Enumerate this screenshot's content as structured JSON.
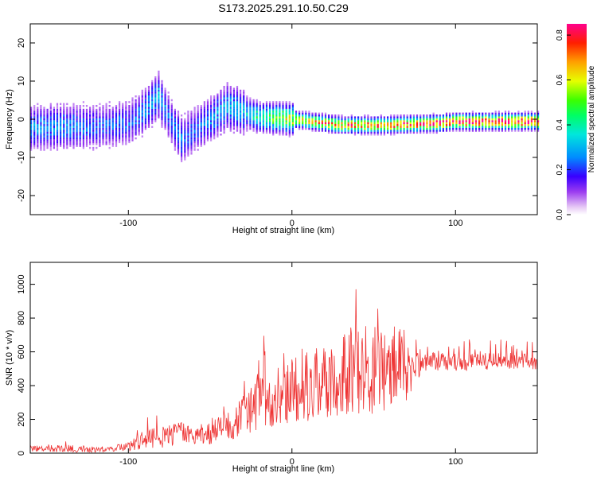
{
  "title": "S173.2025.291.10.50.C29",
  "chart_data": [
    {
      "type": "heatmap",
      "name": "spectrogram",
      "xlabel": "Height of straight line (km)",
      "ylabel": "Frequency (Hz)",
      "xlim": [
        -160,
        150
      ],
      "ylim": [
        -25,
        25
      ],
      "xticks": [
        -100,
        0,
        100
      ],
      "yticks": [
        -20,
        -10,
        0,
        10,
        20
      ],
      "colorbar": {
        "label": "Normalized spectral amplitude",
        "range": [
          0.0,
          0.85
        ],
        "ticks": [
          0.0,
          0.2,
          0.4,
          0.6,
          0.8
        ]
      },
      "ridge": [
        {
          "x": -160,
          "f": -2.5,
          "amp": 0.25
        },
        {
          "x": -140,
          "f": -2.0,
          "amp": 0.25
        },
        {
          "x": -120,
          "f": -2.0,
          "amp": 0.2
        },
        {
          "x": -100,
          "f": -1.0,
          "amp": 0.2
        },
        {
          "x": -90,
          "f": 2.5,
          "amp": 0.25
        },
        {
          "x": -82,
          "f": 6.5,
          "amp": 0.3
        },
        {
          "x": -75,
          "f": 0.0,
          "amp": 0.2
        },
        {
          "x": -68,
          "f": -5.5,
          "amp": 0.25
        },
        {
          "x": -60,
          "f": -3.0,
          "amp": 0.2
        },
        {
          "x": -50,
          "f": 0.0,
          "amp": 0.25
        },
        {
          "x": -40,
          "f": 3.5,
          "amp": 0.3
        },
        {
          "x": -30,
          "f": 2.0,
          "amp": 0.3
        },
        {
          "x": -20,
          "f": 0.5,
          "amp": 0.4
        },
        {
          "x": -10,
          "f": 0.3,
          "amp": 0.55
        },
        {
          "x": 0,
          "f": 0.0,
          "amp": 0.6
        },
        {
          "x": 10,
          "f": -0.5,
          "amp": 0.65
        },
        {
          "x": 20,
          "f": -1.0,
          "amp": 0.7
        },
        {
          "x": 30,
          "f": -1.5,
          "amp": 0.7
        },
        {
          "x": 40,
          "f": -1.5,
          "amp": 0.72
        },
        {
          "x": 50,
          "f": -1.5,
          "amp": 0.72
        },
        {
          "x": 60,
          "f": -1.5,
          "amp": 0.75
        },
        {
          "x": 70,
          "f": -1.3,
          "amp": 0.75
        },
        {
          "x": 80,
          "f": -1.2,
          "amp": 0.78
        },
        {
          "x": 90,
          "f": -1.0,
          "amp": 0.8
        },
        {
          "x": 100,
          "f": -0.6,
          "amp": 0.82
        },
        {
          "x": 110,
          "f": -0.6,
          "amp": 0.83
        },
        {
          "x": 120,
          "f": -0.6,
          "amp": 0.84
        },
        {
          "x": 130,
          "f": -0.6,
          "amp": 0.85
        },
        {
          "x": 150,
          "f": -0.6,
          "amp": 0.85
        }
      ]
    },
    {
      "type": "line",
      "name": "snr",
      "xlabel": "Height of straight line (km)",
      "ylabel": "SNR (10 * v/v)",
      "xlim": [
        -160,
        150
      ],
      "ylim": [
        0,
        1130
      ],
      "xticks": [
        -100,
        0,
        100
      ],
      "yticks": [
        0,
        200,
        400,
        600,
        800,
        1000
      ],
      "color": "#ee3333",
      "envelope": [
        {
          "x": -160,
          "base": 25,
          "amp": 35
        },
        {
          "x": -130,
          "base": 25,
          "amp": 45
        },
        {
          "x": -110,
          "base": 20,
          "amp": 30
        },
        {
          "x": -100,
          "base": 40,
          "amp": 60
        },
        {
          "x": -90,
          "base": 70,
          "amp": 110
        },
        {
          "x": -80,
          "base": 90,
          "amp": 130
        },
        {
          "x": -70,
          "base": 110,
          "amp": 140
        },
        {
          "x": -60,
          "base": 100,
          "amp": 120
        },
        {
          "x": -50,
          "base": 110,
          "amp": 130
        },
        {
          "x": -40,
          "base": 150,
          "amp": 180
        },
        {
          "x": -30,
          "base": 220,
          "amp": 250
        },
        {
          "x": -20,
          "base": 280,
          "amp": 330
        },
        {
          "x": -10,
          "base": 320,
          "amp": 360
        },
        {
          "x": 0,
          "base": 350,
          "amp": 400
        },
        {
          "x": 10,
          "base": 380,
          "amp": 420
        },
        {
          "x": 20,
          "base": 400,
          "amp": 450
        },
        {
          "x": 30,
          "base": 430,
          "amp": 480
        },
        {
          "x": 40,
          "base": 460,
          "amp": 520
        },
        {
          "x": 50,
          "base": 480,
          "amp": 560
        },
        {
          "x": 60,
          "base": 470,
          "amp": 560
        },
        {
          "x": 70,
          "base": 500,
          "amp": 420
        },
        {
          "x": 80,
          "base": 530,
          "amp": 120
        },
        {
          "x": 100,
          "base": 530,
          "amp": 110
        },
        {
          "x": 120,
          "base": 540,
          "amp": 100
        },
        {
          "x": 150,
          "base": 540,
          "amp": 100
        }
      ]
    }
  ]
}
